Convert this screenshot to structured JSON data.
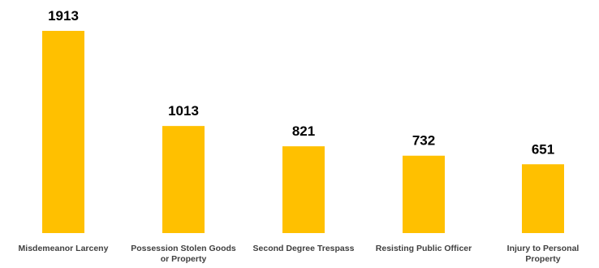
{
  "chart_data": {
    "type": "bar",
    "categories": [
      [
        "Misdemeanor Larceny"
      ],
      [
        "Possession Stolen Goods",
        "or Property"
      ],
      [
        "Second Degree Trespass"
      ],
      [
        "Resisting Public Officer"
      ],
      [
        "Injury to Personal",
        "Property"
      ]
    ],
    "values": [
      1913,
      1013,
      821,
      732,
      651
    ],
    "data_labels": [
      "1913",
      "1013",
      "821",
      "732",
      "651"
    ],
    "bar_color": "#FFC000",
    "title": "",
    "xlabel": "",
    "ylabel": "",
    "ylim": [
      0,
      1913
    ],
    "grid": false,
    "legend": "none"
  }
}
